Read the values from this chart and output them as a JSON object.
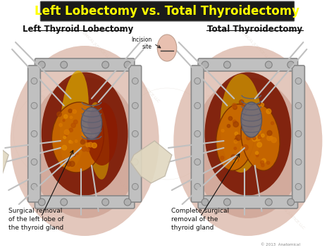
{
  "title": "Left Lobectomy vs. Total Thyroidectomy",
  "title_color": "#FFFF00",
  "title_bg": "#1a1a1a",
  "bg_color": "#FFFFFF",
  "left_label": "Left Thyroid Lobectomy",
  "right_label": "Total Thyroidectomy",
  "incision_label": "Incision\nsite",
  "left_caption": [
    "Surgical removal",
    "of the left lobe of",
    "the thyroid gland"
  ],
  "right_caption": [
    "Complete surgical",
    "removal of the",
    "thyroid gland"
  ],
  "copyright": "© 2013  Anatomical",
  "flesh_light": "#E8C5B5",
  "flesh_mid": "#D4A090",
  "flesh_dark": "#C08878",
  "flesh_shadow": "#B87060",
  "thyroid_orange": "#D4780A",
  "thyroid_dark": "#8B3A00",
  "thyroid_red": "#B02000",
  "muscle_red": "#8B1A00",
  "retractor_gray": "#C0C0C0",
  "retractor_dark": "#888888",
  "trachea_gray": "#909090",
  "instrument_silver": "#BEBEBE",
  "glove_cream": "#E8DCC8",
  "title_fontsize": 12,
  "label_fontsize": 8.5,
  "caption_fontsize": 6.5
}
